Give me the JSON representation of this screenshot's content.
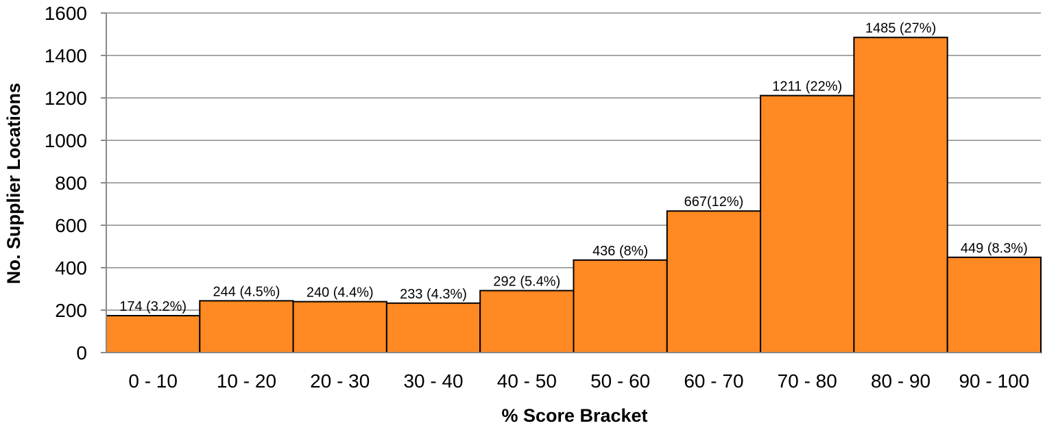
{
  "chart_data": {
    "type": "bar",
    "title": "",
    "xlabel": "% Score Bracket",
    "ylabel": "No. Supplier Locations",
    "categories": [
      "0 - 10",
      "10 - 20",
      "20 - 30",
      "30 - 40",
      "40 - 50",
      "50 - 60",
      "60 - 70",
      "70 - 80",
      "80 - 90",
      "90 - 100"
    ],
    "values": [
      174,
      244,
      240,
      233,
      292,
      436,
      667,
      1211,
      1485,
      449
    ],
    "data_labels": [
      "174 (3.2%)",
      "244 (4.5%)",
      "240 (4.4%)",
      "233 (4.3%)",
      "292 (5.4%)",
      "436 (8%)",
      "667(12%)",
      "1211 (22%)",
      "1485 (27%)",
      "449 (8.3%)"
    ],
    "ylim": [
      0,
      1600
    ],
    "yticks": [
      "0",
      "200",
      "400",
      "600",
      "800",
      "1000",
      "1200",
      "1400",
      "1600"
    ],
    "grid": true,
    "legend": "none",
    "colors": {
      "bar": "#FF8922",
      "bar_edge": "#000000",
      "grid": "#A6A6A6"
    }
  }
}
